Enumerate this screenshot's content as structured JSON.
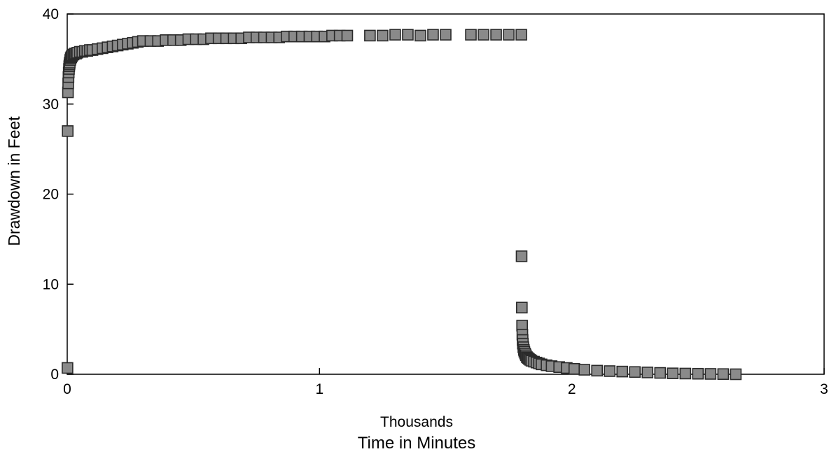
{
  "chart_data": {
    "type": "scatter",
    "title": "",
    "xlabel": "Time in Minutes",
    "xlabel_multiplier": "Thousands",
    "ylabel": "Drawdown in Feet",
    "xlim": [
      0,
      3
    ],
    "ylim": [
      0,
      40
    ],
    "x_ticks": [
      "0",
      "1",
      "2",
      "3"
    ],
    "y_ticks": [
      "0",
      "10",
      "20",
      "30",
      "40"
    ],
    "grid": false,
    "legend": "none",
    "marker": "square",
    "marker_color": "#8a8a8a",
    "marker_edge_color": "#2a2a2a",
    "series": [
      {
        "x": [
          0.001,
          0.002,
          0.003,
          0.004,
          0.005,
          0.006,
          0.007,
          0.008,
          0.009,
          0.01,
          0.012,
          0.014,
          0.016,
          0.018,
          0.02,
          0.025,
          0.03,
          0.035,
          0.04,
          0.05,
          0.06,
          0.07,
          0.08,
          0.09,
          0.1,
          0.12,
          0.14,
          0.16,
          0.18,
          0.2,
          0.22,
          0.24,
          0.26,
          0.28,
          0.3,
          0.33,
          0.36,
          0.39,
          0.42,
          0.45,
          0.48,
          0.51,
          0.54,
          0.57,
          0.6,
          0.63,
          0.66,
          0.69,
          0.72,
          0.75,
          0.78,
          0.81,
          0.84,
          0.87,
          0.9,
          0.93,
          0.96,
          0.99,
          1.02,
          1.05,
          1.08,
          1.11,
          1.2,
          1.25,
          1.3,
          1.35,
          1.4,
          1.45,
          1.5,
          1.6,
          1.65,
          1.7,
          1.75,
          1.8,
          1.801,
          1.802,
          1.803,
          1.804,
          1.805,
          1.806,
          1.808,
          1.81,
          1.812,
          1.815,
          1.818,
          1.822,
          1.826,
          1.83,
          1.835,
          1.84,
          1.85,
          1.86,
          1.87,
          1.88,
          1.9,
          1.92,
          1.95,
          1.98,
          2.01,
          2.05,
          2.1,
          2.15,
          2.2,
          2.25,
          2.3,
          2.35,
          2.4,
          2.45,
          2.5,
          2.55,
          2.6,
          2.65
        ],
        "y": [
          0.7,
          27.0,
          31.3,
          32.3,
          33.0,
          33.5,
          33.9,
          34.2,
          34.4,
          34.6,
          34.9,
          35.1,
          35.2,
          35.3,
          35.4,
          35.5,
          35.6,
          35.6,
          35.7,
          35.8,
          35.8,
          35.9,
          35.9,
          36.0,
          36.0,
          36.1,
          36.2,
          36.3,
          36.4,
          36.5,
          36.6,
          36.7,
          36.8,
          36.9,
          37.0,
          37.0,
          37.0,
          37.1,
          37.1,
          37.1,
          37.2,
          37.2,
          37.2,
          37.3,
          37.3,
          37.3,
          37.3,
          37.3,
          37.4,
          37.4,
          37.4,
          37.4,
          37.4,
          37.5,
          37.5,
          37.5,
          37.5,
          37.5,
          37.5,
          37.6,
          37.6,
          37.6,
          37.6,
          37.6,
          37.7,
          37.7,
          37.6,
          37.7,
          37.7,
          37.7,
          37.7,
          37.7,
          37.7,
          37.7,
          13.1,
          7.4,
          5.4,
          4.4,
          3.8,
          3.4,
          3.0,
          2.7,
          2.5,
          2.3,
          2.1,
          1.9,
          1.8,
          1.7,
          1.6,
          1.5,
          1.4,
          1.3,
          1.2,
          1.1,
          1.0,
          0.9,
          0.8,
          0.7,
          0.6,
          0.5,
          0.4,
          0.35,
          0.3,
          0.25,
          0.2,
          0.15,
          0.1,
          0.08,
          0.06,
          0.04,
          0.02,
          0.0
        ]
      }
    ]
  }
}
